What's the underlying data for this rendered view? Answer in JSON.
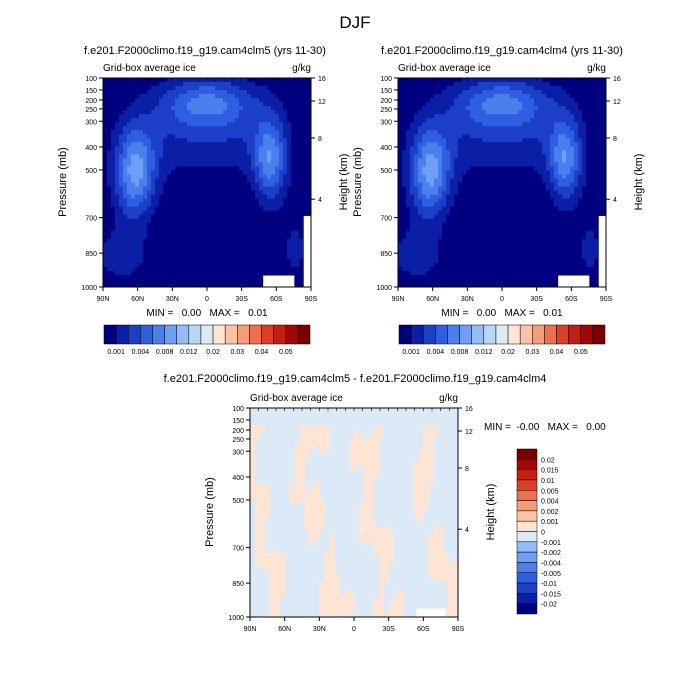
{
  "page": {
    "season_title": "DJF"
  },
  "colors": {
    "ctrl": [
      "#000080",
      "#0a1fa6",
      "#1c3fc8",
      "#2f5ee0",
      "#4a7fec",
      "#6e9ef5",
      "#93bcf7",
      "#bbd5f6",
      "#dce9f7",
      "#fde4d3",
      "#fbc3a6",
      "#f79c78",
      "#ef6e4b",
      "#e03e24",
      "#c41e11",
      "#a00808",
      "#7a0000"
    ],
    "diff": [
      "#000080",
      "#0a1fa6",
      "#1c3fc8",
      "#2f5ee0",
      "#4a7fec",
      "#6e9ef5",
      "#93bcf7",
      "#dce9f7",
      "#fde4d3",
      "#fbc3a6",
      "#f79c78",
      "#ef6e4b",
      "#e03e24",
      "#c41e11",
      "#a00808",
      "#7a0000"
    ]
  },
  "chart_data": [
    {
      "type": "heatmap",
      "title": "f.e201.F2000climo.f19_g19.cam4clm5 (yrs 11-30)",
      "subtitle_left": "Grid-box average ice",
      "subtitle_right": "g/kg",
      "ylabel": "Pressure (mb)",
      "ylabel_right": "Height (km)",
      "x_ticks": [
        "90N",
        "60N",
        "30N",
        "0",
        "30S",
        "60S",
        "90S"
      ],
      "y_ticks": [
        "100",
        "150",
        "200",
        "250",
        "300",
        "400",
        "500",
        "700",
        "850",
        "1000"
      ],
      "y_right_ticks": [
        "16",
        "12",
        "8",
        "4"
      ],
      "stats": "MIN =   0.00   MAX =   0.01",
      "colorbar_labels": [
        "0.001",
        "0.004",
        "0.008",
        "0.012",
        "0.02",
        "0.03",
        "0.04",
        "0.05"
      ]
    },
    {
      "type": "heatmap",
      "title": "f.e201.F2000climo.f19_g19.cam4clm4 (yrs 11-30)",
      "subtitle_left": "Grid-box average ice",
      "subtitle_right": "g/kg",
      "ylabel": "Pressure (mb)",
      "ylabel_right": "Height (km)",
      "x_ticks": [
        "90N",
        "60N",
        "30N",
        "0",
        "30S",
        "60S",
        "90S"
      ],
      "y_ticks": [
        "100",
        "150",
        "200",
        "250",
        "300",
        "400",
        "500",
        "700",
        "850",
        "1000"
      ],
      "y_right_ticks": [
        "16",
        "12",
        "8",
        "4"
      ],
      "stats": "MIN =   0.00   MAX =   0.01",
      "colorbar_labels": [
        "0.001",
        "0.004",
        "0.008",
        "0.012",
        "0.02",
        "0.03",
        "0.04",
        "0.05"
      ]
    },
    {
      "type": "heatmap",
      "title": "f.e201.F2000climo.f19_g19.cam4clm5 - f.e201.F2000climo.f19_g19.cam4clm4",
      "subtitle_left": "Grid-box average ice",
      "subtitle_right": "g/kg",
      "ylabel": "Pressure (mb)",
      "ylabel_right": "Height (km)",
      "x_ticks": [
        "90N",
        "60N",
        "30N",
        "0",
        "30S",
        "60S",
        "90S"
      ],
      "y_ticks": [
        "100",
        "150",
        "200",
        "250",
        "300",
        "400",
        "500",
        "700",
        "850",
        "1000"
      ],
      "y_right_ticks": [
        "16",
        "12",
        "8",
        "4"
      ],
      "stats": "MIN =  -0.00   MAX =   0.00",
      "colorbar_labels": [
        "0.02",
        "0.015",
        "0.01",
        "0.005",
        "0.004",
        "0.002",
        "0.001",
        "0",
        "-0.001",
        "-0.002",
        "-0.004",
        "-0.005",
        "-0.01",
        "-0.015",
        "-0.02"
      ]
    }
  ]
}
